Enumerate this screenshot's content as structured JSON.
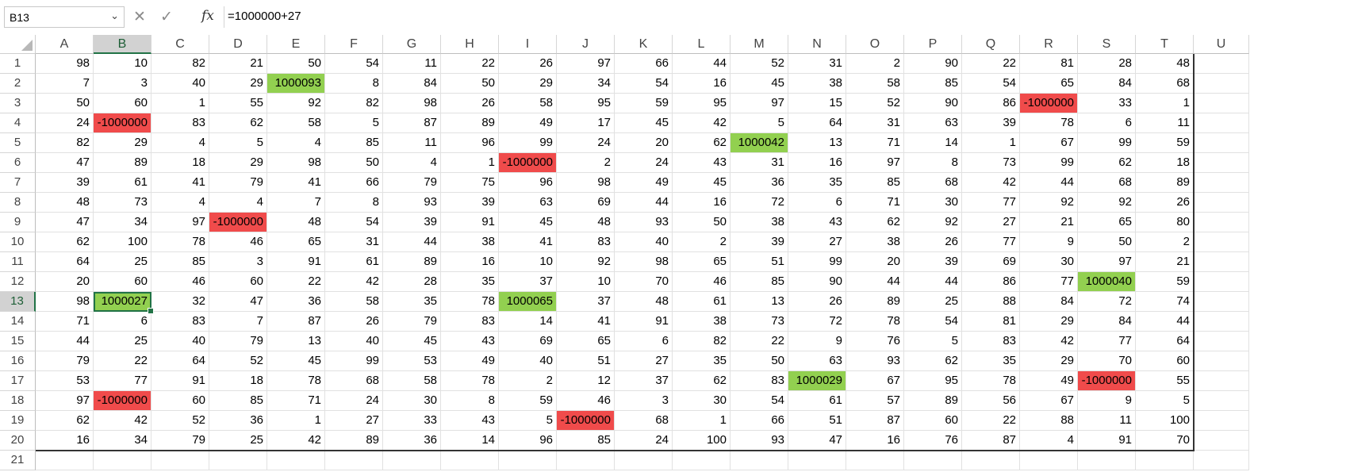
{
  "name_box": {
    "value": "B13",
    "dropdown_icon": "chevron-down-icon"
  },
  "formula_bar": {
    "cancel_icon": "✕",
    "enter_icon": "✓",
    "fx_label": "fx",
    "formula": "=1000000+27"
  },
  "selected_cell": {
    "row": 13,
    "col": "B"
  },
  "colors": {
    "positive_fill": "#92d050",
    "negative_fill": "#f04b4b",
    "selection": "#217346"
  },
  "columns": [
    "A",
    "B",
    "C",
    "D",
    "E",
    "F",
    "G",
    "H",
    "I",
    "J",
    "K",
    "L",
    "M",
    "N",
    "O",
    "P",
    "Q",
    "R",
    "S",
    "T",
    "U"
  ],
  "row_numbers": [
    "1",
    "2",
    "3",
    "4",
    "5",
    "6",
    "7",
    "8",
    "9",
    "10",
    "11",
    "12",
    "13",
    "14",
    "15",
    "16",
    "17",
    "18",
    "19",
    "20",
    "21"
  ],
  "rows": [
    [
      "98",
      "10",
      "82",
      "21",
      "50",
      "54",
      "11",
      "22",
      "26",
      "97",
      "66",
      "44",
      "52",
      "31",
      "2",
      "90",
      "22",
      "81",
      "28",
      "48"
    ],
    [
      "7",
      "3",
      "40",
      "29",
      "1000093",
      "8",
      "84",
      "50",
      "29",
      "34",
      "54",
      "16",
      "45",
      "38",
      "58",
      "85",
      "54",
      "65",
      "84",
      "68"
    ],
    [
      "50",
      "60",
      "1",
      "55",
      "92",
      "82",
      "98",
      "26",
      "58",
      "95",
      "59",
      "95",
      "97",
      "15",
      "52",
      "90",
      "86",
      "-1000000",
      "33",
      "1"
    ],
    [
      "24",
      "-1000000",
      "83",
      "62",
      "58",
      "5",
      "87",
      "89",
      "49",
      "17",
      "45",
      "42",
      "5",
      "64",
      "31",
      "63",
      "39",
      "78",
      "6",
      "11"
    ],
    [
      "82",
      "29",
      "4",
      "5",
      "4",
      "85",
      "11",
      "96",
      "99",
      "24",
      "20",
      "62",
      "1000042",
      "13",
      "71",
      "14",
      "1",
      "67",
      "99",
      "59"
    ],
    [
      "47",
      "89",
      "18",
      "29",
      "98",
      "50",
      "4",
      "1",
      "-1000000",
      "2",
      "24",
      "43",
      "31",
      "16",
      "97",
      "8",
      "73",
      "99",
      "62",
      "18"
    ],
    [
      "39",
      "61",
      "41",
      "79",
      "41",
      "66",
      "79",
      "75",
      "96",
      "98",
      "49",
      "45",
      "36",
      "35",
      "85",
      "68",
      "42",
      "44",
      "68",
      "89"
    ],
    [
      "48",
      "73",
      "4",
      "4",
      "7",
      "8",
      "93",
      "39",
      "63",
      "69",
      "44",
      "16",
      "72",
      "6",
      "71",
      "30",
      "77",
      "92",
      "92",
      "26"
    ],
    [
      "47",
      "34",
      "97",
      "-1000000",
      "48",
      "54",
      "39",
      "91",
      "45",
      "48",
      "93",
      "50",
      "38",
      "43",
      "62",
      "92",
      "27",
      "21",
      "65",
      "80"
    ],
    [
      "62",
      "100",
      "78",
      "46",
      "65",
      "31",
      "44",
      "38",
      "41",
      "83",
      "40",
      "2",
      "39",
      "27",
      "38",
      "26",
      "77",
      "9",
      "50",
      "2"
    ],
    [
      "64",
      "25",
      "85",
      "3",
      "91",
      "61",
      "89",
      "16",
      "10",
      "92",
      "98",
      "65",
      "51",
      "99",
      "20",
      "39",
      "69",
      "30",
      "97",
      "21"
    ],
    [
      "20",
      "60",
      "46",
      "60",
      "22",
      "42",
      "28",
      "35",
      "37",
      "10",
      "70",
      "46",
      "85",
      "90",
      "44",
      "44",
      "86",
      "77",
      "1000040",
      "59"
    ],
    [
      "98",
      "1000027",
      "32",
      "47",
      "36",
      "58",
      "35",
      "78",
      "1000065",
      "37",
      "48",
      "61",
      "13",
      "26",
      "89",
      "25",
      "88",
      "84",
      "72",
      "74"
    ],
    [
      "71",
      "6",
      "83",
      "7",
      "87",
      "26",
      "79",
      "83",
      "14",
      "41",
      "91",
      "38",
      "73",
      "72",
      "78",
      "54",
      "81",
      "29",
      "84",
      "44"
    ],
    [
      "44",
      "25",
      "40",
      "79",
      "13",
      "40",
      "45",
      "43",
      "69",
      "65",
      "6",
      "82",
      "22",
      "9",
      "76",
      "5",
      "83",
      "42",
      "77",
      "64"
    ],
    [
      "79",
      "22",
      "64",
      "52",
      "45",
      "99",
      "53",
      "49",
      "40",
      "51",
      "27",
      "35",
      "50",
      "63",
      "93",
      "62",
      "35",
      "29",
      "70",
      "60"
    ],
    [
      "53",
      "77",
      "91",
      "18",
      "78",
      "68",
      "58",
      "78",
      "2",
      "12",
      "37",
      "62",
      "83",
      "1000029",
      "67",
      "95",
      "78",
      "49",
      "-1000000",
      "55"
    ],
    [
      "97",
      "-1000000",
      "60",
      "85",
      "71",
      "24",
      "30",
      "8",
      "59",
      "46",
      "3",
      "30",
      "54",
      "61",
      "57",
      "89",
      "56",
      "67",
      "9",
      "5"
    ],
    [
      "62",
      "42",
      "52",
      "36",
      "1",
      "27",
      "33",
      "43",
      "5",
      "-1000000",
      "68",
      "1",
      "66",
      "51",
      "87",
      "60",
      "22",
      "88",
      "11",
      "100"
    ],
    [
      "16",
      "34",
      "79",
      "25",
      "42",
      "89",
      "36",
      "14",
      "96",
      "85",
      "24",
      "100",
      "93",
      "47",
      "16",
      "76",
      "87",
      "4",
      "91",
      "70"
    ]
  ]
}
